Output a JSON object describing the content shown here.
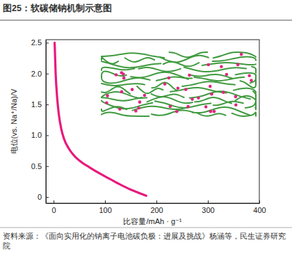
{
  "chart_data": {
    "type": "line",
    "title": "图25：软碳储钠机制示意图",
    "source": "资料来源：《面向实用化的钠离子电池碳负极：进展及挑战》杨涵等，民生证券研究院",
    "x_label": "比容量/mAh · g⁻¹",
    "y_label": "电位(vs. Na⁺/Na)/V",
    "x": [
      2,
      4,
      7,
      10,
      15,
      20,
      30,
      40,
      55,
      70,
      90,
      110,
      130,
      150,
      165,
      180
    ],
    "series": [
      {
        "color": "#e8197d",
        "values": [
          2.5,
          2.0,
          1.6,
          1.35,
          1.1,
          0.95,
          0.78,
          0.67,
          0.56,
          0.48,
          0.38,
          0.29,
          0.2,
          0.12,
          0.07,
          0.02
        ]
      }
    ],
    "xlim": [
      -15,
      400
    ],
    "xticks": [
      0,
      100,
      200,
      300,
      400
    ],
    "ylim": [
      -0.1,
      2.55
    ],
    "yticks": [
      0,
      0.5,
      {
        "value": 1,
        "label": "1.0"
      },
      1.5,
      {
        "value": 2,
        "label": "2.0"
      },
      2.5
    ],
    "grid": false
  }
}
